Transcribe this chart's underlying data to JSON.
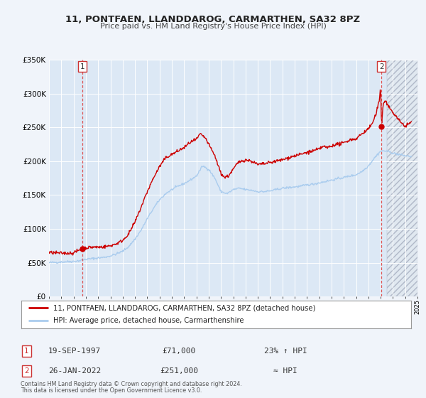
{
  "title": "11, PONTFAEN, LLANDDAROG, CARMARTHEN, SA32 8PZ",
  "subtitle": "Price paid vs. HM Land Registry's House Price Index (HPI)",
  "legend_line1": "11, PONTFAEN, LLANDDAROG, CARMARTHEN, SA32 8PZ (detached house)",
  "legend_line2": "HPI: Average price, detached house, Carmarthenshire",
  "annotation1_label": "1",
  "annotation1_date": "19-SEP-1997",
  "annotation1_price": "£71,000",
  "annotation1_hpi": "23% ↑ HPI",
  "annotation2_label": "2",
  "annotation2_date": "26-JAN-2022",
  "annotation2_price": "£251,000",
  "annotation2_hpi": "≈ HPI",
  "footer1": "Contains HM Land Registry data © Crown copyright and database right 2024.",
  "footer2": "This data is licensed under the Open Government Licence v3.0.",
  "xmin": 1995,
  "xmax": 2025,
  "ymin": 0,
  "ymax": 350000,
  "sale1_year": 1997.72,
  "sale1_value": 71000,
  "sale2_year": 2022.07,
  "sale2_value": 251000,
  "red_color": "#cc0000",
  "blue_color": "#aaccee",
  "marker_color": "#cc0000",
  "bg_color": "#f0f4fa",
  "plot_bg": "#dce8f5",
  "grid_color": "#ffffff",
  "hatch_bg": "#e0e8f0"
}
